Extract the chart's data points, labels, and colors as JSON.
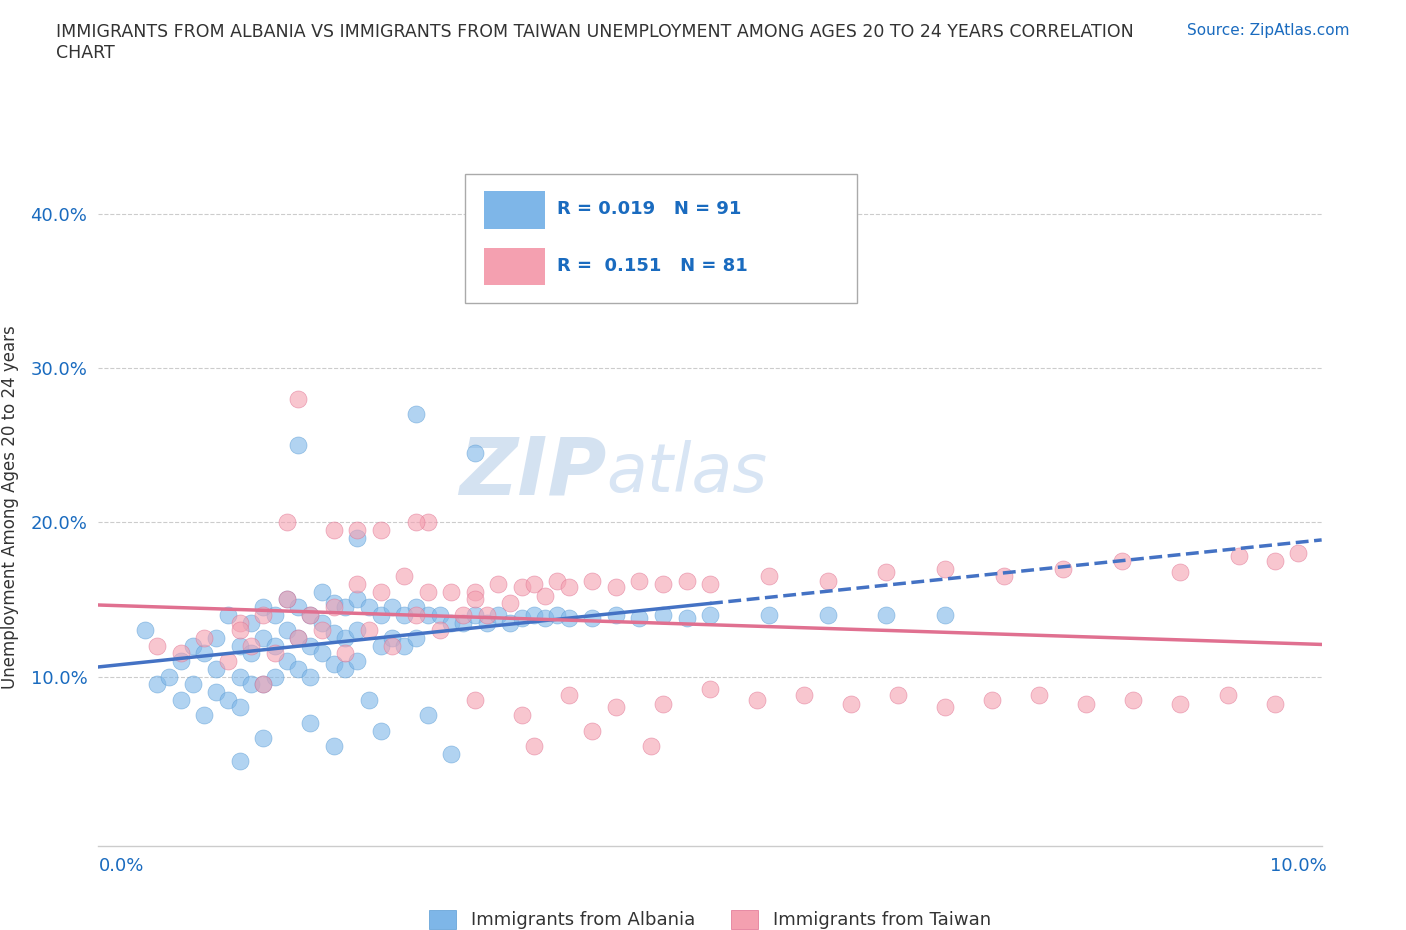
{
  "title": "IMMIGRANTS FROM ALBANIA VS IMMIGRANTS FROM TAIWAN UNEMPLOYMENT AMONG AGES 20 TO 24 YEARS CORRELATION\nCHART",
  "source_text": "Source: ZipAtlas.com",
  "ylabel": "Unemployment Among Ages 20 to 24 years",
  "xlim": [
    -0.002,
    0.102
  ],
  "ylim": [
    -0.01,
    0.43
  ],
  "xticks": [
    0.0,
    0.02,
    0.04,
    0.06,
    0.08,
    0.1
  ],
  "xticklabels": [
    "0.0%",
    "",
    "",
    "",
    "",
    "10.0%"
  ],
  "yticks": [
    0.0,
    0.1,
    0.2,
    0.3,
    0.4
  ],
  "yticklabels": [
    "",
    "10.0%",
    "20.0%",
    "30.0%",
    "40.0%"
  ],
  "albania_color": "#7EB6E8",
  "taiwan_color": "#F4A0B0",
  "albania_edge": "#5A9CD4",
  "taiwan_edge": "#E07090",
  "legend_R_color": "#1a6bbf",
  "watermark_zip": "ZIP",
  "watermark_atlas": "atlas",
  "background_color": "#ffffff",
  "grid_color": "#cccccc",
  "albania_x": [
    0.002,
    0.003,
    0.004,
    0.005,
    0.005,
    0.006,
    0.006,
    0.007,
    0.007,
    0.008,
    0.008,
    0.008,
    0.009,
    0.009,
    0.01,
    0.01,
    0.01,
    0.011,
    0.011,
    0.011,
    0.012,
    0.012,
    0.012,
    0.013,
    0.013,
    0.013,
    0.014,
    0.014,
    0.014,
    0.015,
    0.015,
    0.015,
    0.016,
    0.016,
    0.016,
    0.017,
    0.017,
    0.017,
    0.018,
    0.018,
    0.018,
    0.019,
    0.019,
    0.019,
    0.02,
    0.02,
    0.02,
    0.021,
    0.021,
    0.022,
    0.022,
    0.023,
    0.023,
    0.024,
    0.024,
    0.025,
    0.025,
    0.026,
    0.027,
    0.028,
    0.029,
    0.03,
    0.031,
    0.032,
    0.033,
    0.034,
    0.035,
    0.036,
    0.037,
    0.038,
    0.04,
    0.042,
    0.044,
    0.046,
    0.048,
    0.05,
    0.055,
    0.06,
    0.065,
    0.07,
    0.02,
    0.015,
    0.025,
    0.03,
    0.01,
    0.012,
    0.016,
    0.018,
    0.022,
    0.026,
    0.028
  ],
  "albania_y": [
    0.13,
    0.095,
    0.1,
    0.11,
    0.085,
    0.12,
    0.095,
    0.115,
    0.075,
    0.125,
    0.105,
    0.09,
    0.14,
    0.085,
    0.12,
    0.1,
    0.08,
    0.135,
    0.115,
    0.095,
    0.145,
    0.125,
    0.095,
    0.14,
    0.12,
    0.1,
    0.15,
    0.13,
    0.11,
    0.145,
    0.125,
    0.105,
    0.14,
    0.12,
    0.1,
    0.155,
    0.135,
    0.115,
    0.148,
    0.128,
    0.108,
    0.145,
    0.125,
    0.105,
    0.15,
    0.13,
    0.11,
    0.145,
    0.085,
    0.14,
    0.12,
    0.145,
    0.125,
    0.14,
    0.12,
    0.145,
    0.125,
    0.14,
    0.14,
    0.135,
    0.135,
    0.14,
    0.135,
    0.14,
    0.135,
    0.138,
    0.14,
    0.138,
    0.14,
    0.138,
    0.138,
    0.14,
    0.138,
    0.14,
    0.138,
    0.14,
    0.14,
    0.14,
    0.14,
    0.14,
    0.19,
    0.25,
    0.27,
    0.245,
    0.045,
    0.06,
    0.07,
    0.055,
    0.065,
    0.075,
    0.05
  ],
  "taiwan_x": [
    0.003,
    0.005,
    0.007,
    0.009,
    0.01,
    0.011,
    0.012,
    0.013,
    0.014,
    0.015,
    0.016,
    0.017,
    0.018,
    0.019,
    0.02,
    0.021,
    0.022,
    0.023,
    0.024,
    0.025,
    0.026,
    0.027,
    0.028,
    0.029,
    0.03,
    0.031,
    0.032,
    0.033,
    0.034,
    0.035,
    0.036,
    0.037,
    0.038,
    0.04,
    0.042,
    0.044,
    0.046,
    0.048,
    0.05,
    0.055,
    0.06,
    0.065,
    0.07,
    0.075,
    0.08,
    0.085,
    0.09,
    0.095,
    0.098,
    0.1,
    0.014,
    0.018,
    0.022,
    0.026,
    0.03,
    0.034,
    0.038,
    0.042,
    0.046,
    0.05,
    0.054,
    0.058,
    0.062,
    0.066,
    0.07,
    0.074,
    0.078,
    0.082,
    0.086,
    0.09,
    0.094,
    0.098,
    0.015,
    0.02,
    0.025,
    0.03,
    0.035,
    0.04,
    0.045,
    0.01,
    0.012
  ],
  "taiwan_y": [
    0.12,
    0.115,
    0.125,
    0.11,
    0.135,
    0.12,
    0.14,
    0.115,
    0.15,
    0.125,
    0.14,
    0.13,
    0.145,
    0.115,
    0.16,
    0.13,
    0.155,
    0.12,
    0.165,
    0.14,
    0.155,
    0.13,
    0.155,
    0.14,
    0.155,
    0.14,
    0.16,
    0.148,
    0.158,
    0.16,
    0.152,
    0.162,
    0.158,
    0.162,
    0.158,
    0.162,
    0.16,
    0.162,
    0.16,
    0.165,
    0.162,
    0.168,
    0.17,
    0.165,
    0.17,
    0.175,
    0.168,
    0.178,
    0.175,
    0.18,
    0.2,
    0.195,
    0.195,
    0.2,
    0.15,
    0.075,
    0.088,
    0.08,
    0.082,
    0.092,
    0.085,
    0.088,
    0.082,
    0.088,
    0.08,
    0.085,
    0.088,
    0.082,
    0.085,
    0.082,
    0.088,
    0.082,
    0.28,
    0.195,
    0.2,
    0.085,
    0.055,
    0.065,
    0.055,
    0.13,
    0.095
  ]
}
